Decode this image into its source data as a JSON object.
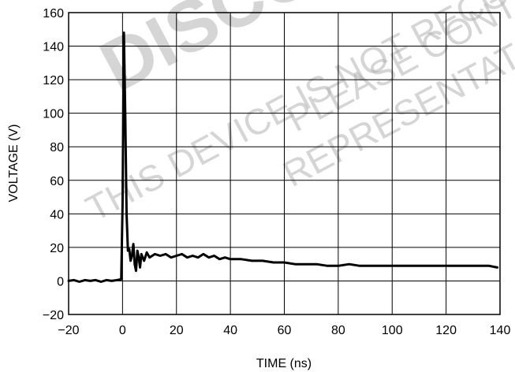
{
  "watermark": {
    "line1": "DISCONTINUED",
    "line2": "THIS DEVICE IS NOT RECOMMENDED",
    "line3": "PLEASE CONTACT",
    "line4": "REPRESENTATIVE"
  },
  "chart_data": {
    "type": "line",
    "title": "",
    "xlabel": "TIME (ns)",
    "ylabel": "VOLTAGE (V)",
    "xlim": [
      -20,
      140
    ],
    "ylim": [
      -20,
      160
    ],
    "xticks": [
      -20,
      0,
      20,
      40,
      60,
      80,
      100,
      120,
      140
    ],
    "yticks": [
      -20,
      0,
      20,
      40,
      60,
      80,
      100,
      120,
      140,
      160
    ],
    "xtick_labels": [
      "−20",
      "0",
      "20",
      "40",
      "60",
      "80",
      "100",
      "120",
      "140"
    ],
    "ytick_labels": [
      "−20",
      "0",
      "20",
      "40",
      "60",
      "80",
      "100",
      "120",
      "140",
      "160"
    ],
    "grid": true,
    "series": [
      {
        "name": "",
        "color": "#000000",
        "x": [
          -20,
          -18,
          -16,
          -14,
          -12,
          -10,
          -8,
          -6,
          -4,
          -2,
          -0.5,
          0,
          0.5,
          1,
          1.5,
          2,
          2.5,
          3,
          3.5,
          4,
          4.5,
          5,
          5.5,
          6,
          6.5,
          7,
          8,
          9,
          10,
          12,
          14,
          16,
          18,
          20,
          22,
          24,
          26,
          28,
          30,
          32,
          34,
          36,
          38,
          40,
          44,
          48,
          52,
          56,
          60,
          64,
          68,
          72,
          76,
          80,
          84,
          88,
          92,
          96,
          100,
          104,
          108,
          112,
          116,
          120,
          124,
          128,
          132,
          136,
          139
        ],
        "y": [
          0,
          0.5,
          -0.5,
          0.5,
          0,
          0.5,
          -0.5,
          0.5,
          0,
          0.5,
          1,
          45,
          148,
          100,
          40,
          18,
          19,
          12,
          15,
          22,
          10,
          6,
          18,
          14,
          8,
          16,
          12,
          17,
          14,
          16,
          15,
          16,
          14,
          15,
          16,
          14,
          15,
          14,
          16,
          14,
          15,
          13,
          14,
          13,
          13,
          12,
          12,
          11,
          11,
          10,
          10,
          10,
          9,
          9,
          10,
          9,
          9,
          9,
          9,
          9,
          9,
          9,
          9,
          9,
          9,
          9,
          9,
          9,
          8
        ]
      }
    ]
  }
}
